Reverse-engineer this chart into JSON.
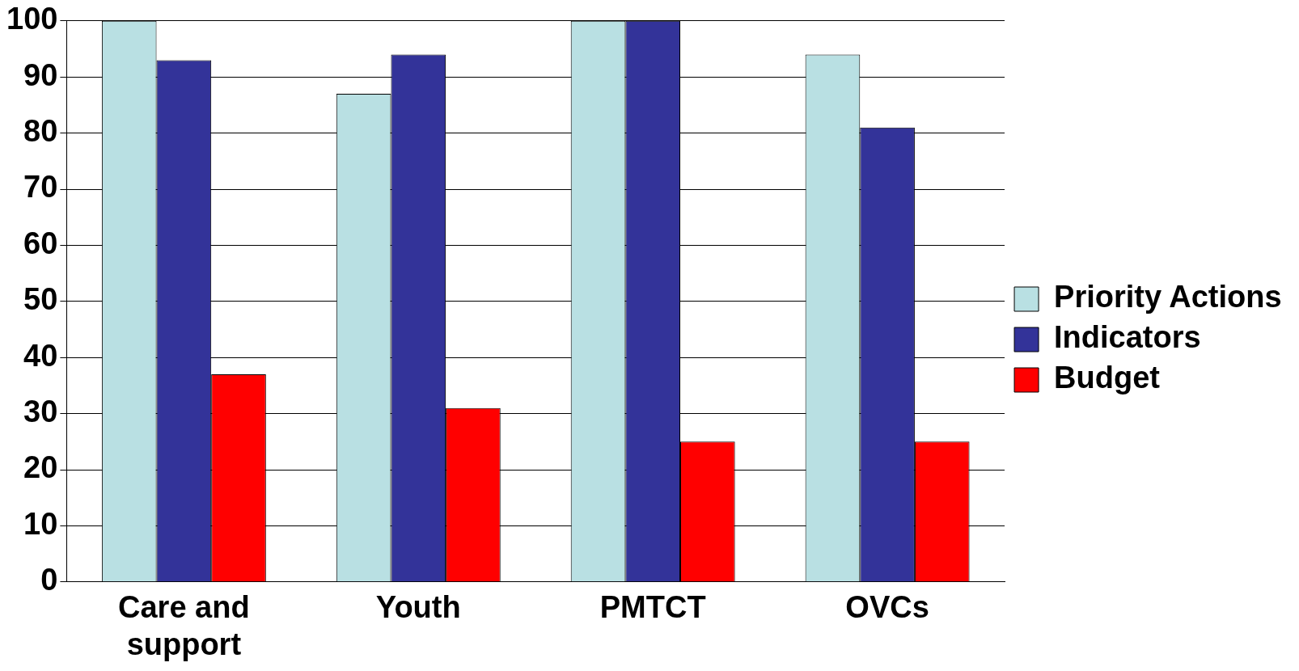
{
  "chart_data": {
    "type": "bar",
    "categories": [
      "Care and support",
      "Youth",
      "PMTCT",
      "OVCs"
    ],
    "series": [
      {
        "name": "Priority Actions",
        "color": "#b9e0e3",
        "values": [
          100,
          87,
          100,
          94
        ]
      },
      {
        "name": "Indicators",
        "color": "#333399",
        "values": [
          93,
          94,
          100,
          81
        ]
      },
      {
        "name": "Budget",
        "color": "#ff0000",
        "values": [
          37,
          31,
          25,
          25
        ]
      }
    ],
    "ylim": [
      0,
      100
    ],
    "yticks": [
      0,
      10,
      20,
      30,
      40,
      50,
      60,
      70,
      80,
      90,
      100
    ],
    "grid": "y",
    "legend": "right"
  }
}
